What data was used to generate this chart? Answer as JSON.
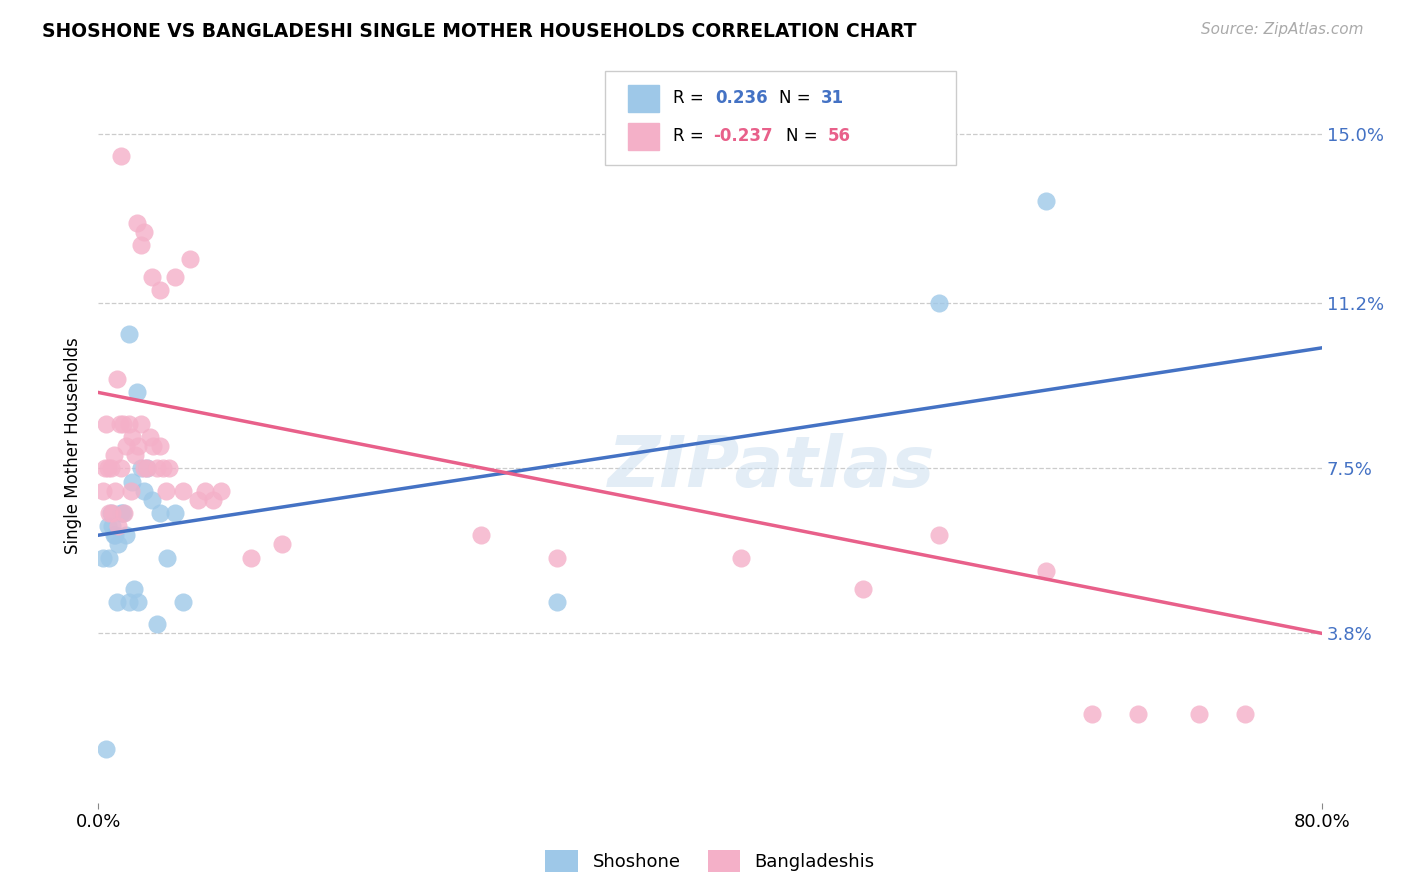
{
  "title": "SHOSHONE VS BANGLADESHI SINGLE MOTHER HOUSEHOLDS CORRELATION CHART",
  "source": "Source: ZipAtlas.com",
  "ylabel": "Single Mother Households",
  "watermark": "ZIPatlas",
  "xlim": [
    0.0,
    80.0
  ],
  "ylim": [
    0.0,
    16.0
  ],
  "yticks": [
    3.8,
    7.5,
    11.2,
    15.0
  ],
  "ytick_labels": [
    "3.8%",
    "7.5%",
    "11.2%",
    "15.0%"
  ],
  "xtick_vals": [
    0.0,
    80.0
  ],
  "xtick_labels": [
    "0.0%",
    "80.0%"
  ],
  "shoshone_R": "0.236",
  "shoshone_N": "31",
  "bangladeshi_R": "-0.237",
  "bangladeshi_N": "56",
  "shoshone_color": "#9ec8e8",
  "bangladeshi_color": "#f4b0c8",
  "shoshone_line_color": "#4472c4",
  "bangladeshi_line_color": "#e8608a",
  "shoshone_line_y0": 6.0,
  "shoshone_line_y1": 10.2,
  "bangladeshi_line_y0": 9.2,
  "bangladeshi_line_y1": 3.8,
  "shoshone_x": [
    0.5,
    1.2,
    2.0,
    2.5,
    3.2,
    0.8,
    1.0,
    1.5,
    2.2,
    2.8,
    0.3,
    0.6,
    0.7,
    0.9,
    1.1,
    1.3,
    1.6,
    1.8,
    2.0,
    2.3,
    2.6,
    3.8,
    5.5,
    3.0,
    3.5,
    4.0,
    4.5,
    5.0,
    30.0,
    55.0,
    62.0
  ],
  "shoshone_y": [
    1.2,
    4.5,
    10.5,
    9.2,
    7.5,
    6.5,
    6.0,
    6.5,
    7.2,
    7.5,
    5.5,
    6.2,
    5.5,
    6.2,
    6.0,
    5.8,
    6.5,
    6.0,
    4.5,
    4.8,
    4.5,
    4.0,
    4.5,
    7.0,
    6.8,
    6.5,
    5.5,
    6.5,
    4.5,
    11.2,
    13.5
  ],
  "bangladeshi_x": [
    1.5,
    2.5,
    2.8,
    3.0,
    3.5,
    4.0,
    5.0,
    6.0,
    0.5,
    0.8,
    1.0,
    1.2,
    1.4,
    1.6,
    1.8,
    2.0,
    2.2,
    2.4,
    2.6,
    2.8,
    3.0,
    3.2,
    3.4,
    3.6,
    3.8,
    4.0,
    4.2,
    4.4,
    4.6,
    5.5,
    6.5,
    7.0,
    7.5,
    8.0,
    10.0,
    12.0,
    0.3,
    0.4,
    0.6,
    0.7,
    0.9,
    1.1,
    1.3,
    1.5,
    1.7,
    2.1,
    25.0,
    30.0,
    42.0,
    50.0,
    55.0,
    62.0,
    65.0,
    68.0,
    72.0,
    75.0
  ],
  "bangladeshi_y": [
    14.5,
    13.0,
    12.5,
    12.8,
    11.8,
    11.5,
    11.8,
    12.2,
    8.5,
    7.5,
    7.8,
    9.5,
    8.5,
    8.5,
    8.0,
    8.5,
    8.2,
    7.8,
    8.0,
    8.5,
    7.5,
    7.5,
    8.2,
    8.0,
    7.5,
    8.0,
    7.5,
    7.0,
    7.5,
    7.0,
    6.8,
    7.0,
    6.8,
    7.0,
    5.5,
    5.8,
    7.0,
    7.5,
    7.5,
    6.5,
    6.5,
    7.0,
    6.2,
    7.5,
    6.5,
    7.0,
    6.0,
    5.5,
    5.5,
    4.8,
    6.0,
    5.2,
    2.0,
    2.0,
    2.0,
    2.0
  ]
}
